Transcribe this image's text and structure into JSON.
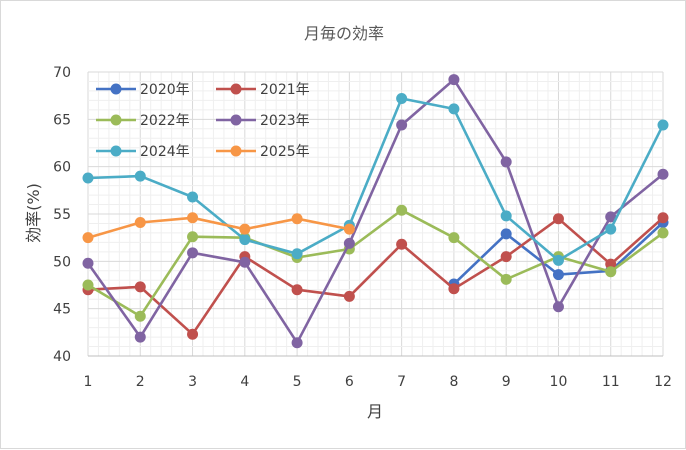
{
  "chart_data": {
    "type": "line",
    "title": "月毎の効率",
    "xlabel": "月",
    "ylabel": "効率(%)",
    "x": [
      1,
      2,
      3,
      4,
      5,
      6,
      7,
      8,
      9,
      10,
      11,
      12
    ],
    "ylim": [
      40,
      70
    ],
    "yticks": [
      40,
      45,
      50,
      55,
      60,
      65,
      70
    ],
    "grid": true,
    "legend_position": "top-left",
    "series": [
      {
        "name": "2020年",
        "color": "#4472c4",
        "values": [
          null,
          null,
          null,
          null,
          null,
          null,
          null,
          47.6,
          52.9,
          48.6,
          49.0,
          54.1
        ]
      },
      {
        "name": "2021年",
        "color": "#c0504d",
        "values": [
          47.0,
          47.3,
          42.3,
          50.5,
          47.0,
          46.3,
          51.8,
          47.1,
          50.5,
          54.5,
          49.7,
          54.6
        ]
      },
      {
        "name": "2022年",
        "color": "#9bbb59",
        "values": [
          47.5,
          44.2,
          52.6,
          52.5,
          50.4,
          51.3,
          55.4,
          52.5,
          48.1,
          50.5,
          48.9,
          53.0
        ]
      },
      {
        "name": "2023年",
        "color": "#8064a2",
        "values": [
          49.8,
          42.0,
          50.9,
          49.9,
          41.4,
          51.9,
          64.4,
          69.2,
          60.5,
          45.2,
          54.7,
          59.2
        ]
      },
      {
        "name": "2024年",
        "color": "#4bacc6",
        "values": [
          58.8,
          59.0,
          56.8,
          52.3,
          50.8,
          53.8,
          67.2,
          66.1,
          54.8,
          50.1,
          53.4,
          64.4
        ]
      },
      {
        "name": "2025年",
        "color": "#f79646",
        "values": [
          52.5,
          54.1,
          54.6,
          53.4,
          54.5,
          53.4,
          null,
          null,
          null,
          null,
          null,
          null
        ]
      }
    ]
  }
}
